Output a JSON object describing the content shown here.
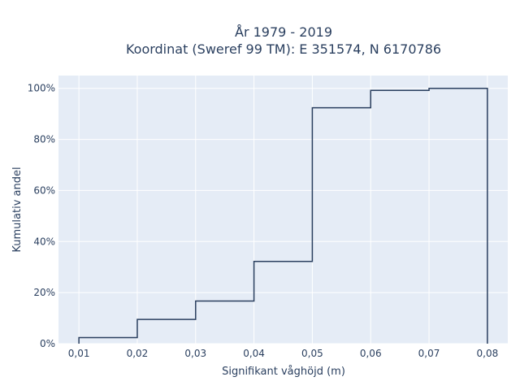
{
  "chart_data": {
    "type": "line",
    "line_shape": "step",
    "title_lines": [
      "År 1979 - 2019",
      "Koordinat (Sweref 99 TM): E 351574, N 6170786"
    ],
    "xlabel": "Signifikant våghöjd (m)",
    "ylabel": "Kumulativ andel",
    "xlim": [
      0.0065,
      0.0835
    ],
    "ylim": [
      0,
      1.05
    ],
    "x_ticks": [
      0.01,
      0.02,
      0.03,
      0.04,
      0.05,
      0.06,
      0.07,
      0.08
    ],
    "x_tick_labels": [
      "0,01",
      "0,02",
      "0,03",
      "0,04",
      "0,05",
      "0,06",
      "0,07",
      "0,08"
    ],
    "y_ticks": [
      0,
      0.2,
      0.4,
      0.6,
      0.8,
      1.0
    ],
    "y_tick_labels": [
      "0%",
      "20%",
      "40%",
      "60%",
      "80%",
      "100%"
    ],
    "bin_edges": [
      0.01,
      0.02,
      0.03,
      0.04,
      0.05,
      0.06,
      0.07,
      0.08
    ],
    "cumulative_values": [
      0.024,
      0.095,
      0.167,
      0.322,
      0.924,
      0.992,
      1.0
    ],
    "grid": true,
    "line_color": "#2a3f5f",
    "plot_bg": "#e5ecf6"
  }
}
